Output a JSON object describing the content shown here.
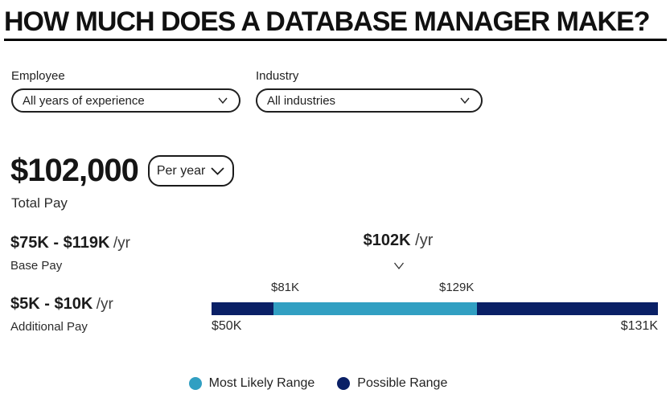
{
  "page": {
    "title": "HOW MUCH DOES A DATABASE MANAGER MAKE?"
  },
  "filters": {
    "employee": {
      "label": "Employee",
      "selected": "All years of experience"
    },
    "industry": {
      "label": "Industry",
      "selected": "All industries"
    }
  },
  "total_pay": {
    "amount": "$102,000",
    "period": "Per year",
    "label": "Total Pay"
  },
  "base_pay": {
    "range": "$75K - $119K",
    "unit": "/yr",
    "label": "Base Pay"
  },
  "additional_pay": {
    "range": "$5K - $10K",
    "unit": "/yr",
    "label": "Additional Pay"
  },
  "chart_data": {
    "type": "range-bar",
    "median_label": "$102K",
    "median_unit": "/yr",
    "median_value": 102000,
    "axis_min_label": "$50K",
    "axis_min_value": 50000,
    "axis_max_label": "$131K",
    "axis_max_value": 131000,
    "likely_min_label": "$81K",
    "likely_min_value": 81000,
    "likely_max_label": "$129K",
    "likely_max_value": 129000,
    "segments": [
      {
        "role": "possible",
        "from": 50000,
        "to": 81000,
        "width_pct": 13.9
      },
      {
        "role": "most_likely",
        "from": 81000,
        "to": 129000,
        "width_pct": 45.6
      },
      {
        "role": "possible",
        "from": 129000,
        "to": 131000,
        "width_pct": 40.5
      }
    ],
    "colors": {
      "most_likely": "#319fc2",
      "possible": "#0a2066"
    }
  },
  "legend": {
    "items": [
      {
        "label": "Most Likely Range",
        "color": "#319fc2"
      },
      {
        "label": "Possible Range",
        "color": "#0a2066"
      }
    ]
  }
}
